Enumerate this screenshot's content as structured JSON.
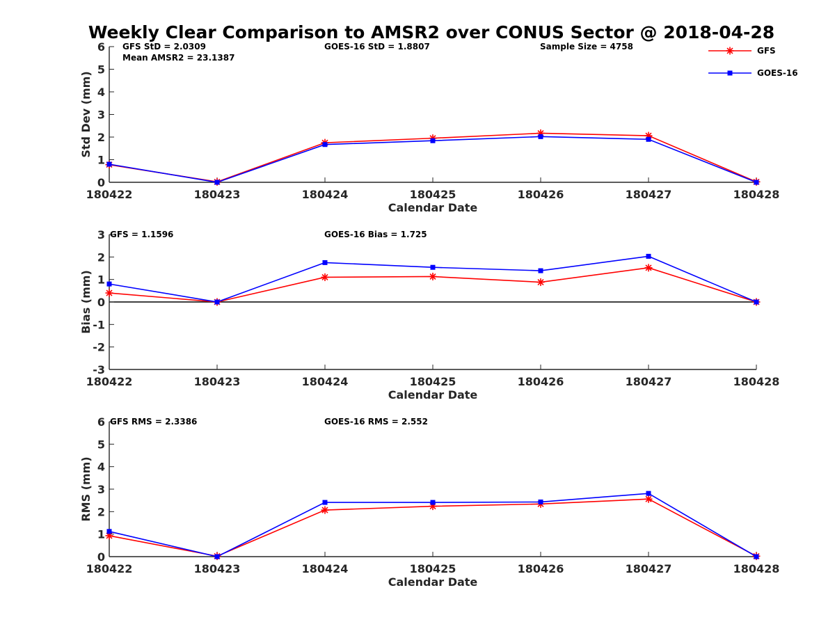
{
  "title": "Weekly Clear Comparison to AMSR2 over CONUS Sector @ 2018-04-28",
  "legend": [
    {
      "label": "GFS",
      "color": "#ff0000",
      "marker": "asterisk"
    },
    {
      "label": "GOES-16",
      "color": "#0000ff",
      "marker": "square"
    }
  ],
  "chart_data": [
    {
      "type": "line",
      "categories": [
        "180422",
        "180423",
        "180424",
        "180425",
        "180426",
        "180427",
        "180428"
      ],
      "xlabel": "Calendar Date",
      "ylabel": "Std Dev (mm)",
      "ylim": [
        0,
        6
      ],
      "yticks": [
        0,
        1,
        2,
        3,
        4,
        5,
        6
      ],
      "zero_line": false,
      "annotations": {
        "left": "GFS StD = 2.0309",
        "left2": "Mean AMSR2 = 23.1387",
        "mid": "GOES-16 StD = 1.8807",
        "right": "Sample Size = 4758"
      },
      "series": [
        {
          "name": "GFS",
          "color": "#ff0000",
          "marker": "asterisk",
          "values": [
            0.78,
            0.02,
            1.75,
            1.95,
            2.17,
            2.06,
            0.02
          ]
        },
        {
          "name": "GOES-16",
          "color": "#0000ff",
          "marker": "square",
          "values": [
            0.8,
            0.0,
            1.67,
            1.84,
            2.02,
            1.9,
            0.0
          ]
        }
      ]
    },
    {
      "type": "line",
      "categories": [
        "180422",
        "180423",
        "180424",
        "180425",
        "180426",
        "180427",
        "180428"
      ],
      "xlabel": "Calendar Date",
      "ylabel": "Bias (mm)",
      "ylim": [
        -3,
        3
      ],
      "yticks": [
        -3,
        -2,
        -1,
        0,
        1,
        2,
        3
      ],
      "zero_line": true,
      "annotations": {
        "left": "GFS = 1.1596",
        "left2": "",
        "mid": "GOES-16 Bias  = 1.725",
        "right": ""
      },
      "series": [
        {
          "name": "GFS",
          "color": "#ff0000",
          "marker": "asterisk",
          "values": [
            0.4,
            0.0,
            1.1,
            1.13,
            0.88,
            1.52,
            0.0
          ]
        },
        {
          "name": "GOES-16",
          "color": "#0000ff",
          "marker": "square",
          "values": [
            0.8,
            0.0,
            1.75,
            1.54,
            1.39,
            2.03,
            0.0
          ]
        }
      ]
    },
    {
      "type": "line",
      "categories": [
        "180422",
        "180423",
        "180424",
        "180425",
        "180426",
        "180427",
        "180428"
      ],
      "xlabel": "Calendar Date",
      "ylabel": "RMS (mm)",
      "ylim": [
        0,
        6
      ],
      "yticks": [
        0,
        1,
        2,
        3,
        4,
        5,
        6
      ],
      "zero_line": false,
      "annotations": {
        "left": "GFS RMS = 2.3386",
        "left2": "",
        "mid": "GOES-16 RMS = 2.552",
        "right": ""
      },
      "series": [
        {
          "name": "GFS",
          "color": "#ff0000",
          "marker": "asterisk",
          "values": [
            0.93,
            0.02,
            2.07,
            2.24,
            2.34,
            2.56,
            0.02
          ]
        },
        {
          "name": "GOES-16",
          "color": "#0000ff",
          "marker": "square",
          "values": [
            1.12,
            0.0,
            2.41,
            2.41,
            2.43,
            2.81,
            0.0
          ]
        }
      ]
    }
  ]
}
